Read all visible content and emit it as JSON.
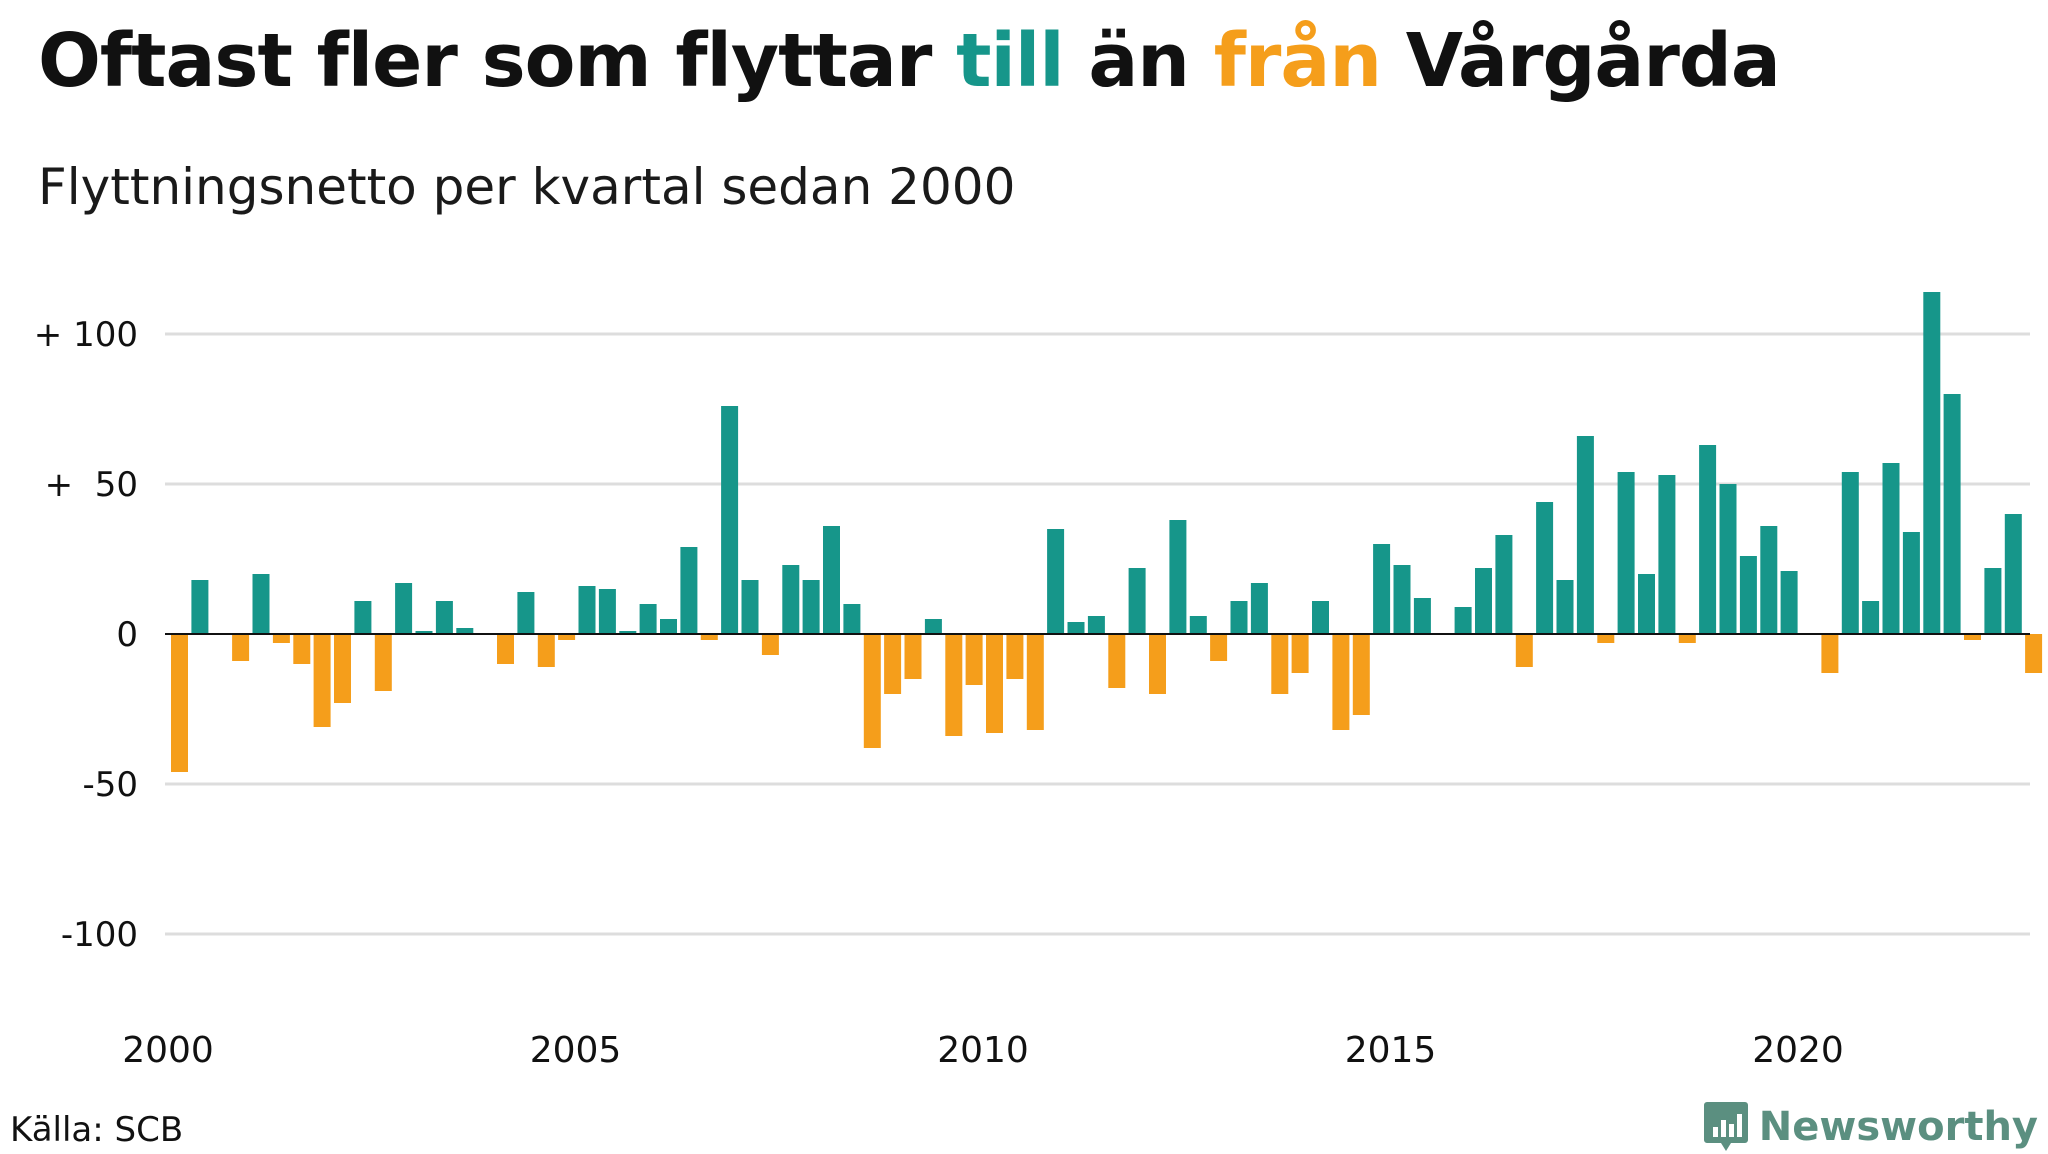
{
  "title": {
    "part1": "Oftast fler som flyttar ",
    "till": "till",
    "part2": " än ",
    "fran": "från",
    "part3": " Vårgårda"
  },
  "subtitle": "Flyttningsnetto per kvartal sedan 2000",
  "source": "Källa: SCB",
  "brand": "Newsworthy",
  "colors": {
    "positive": "#16968a",
    "negative": "#f59e1b",
    "grid": "#dddddd",
    "zero": "#111111",
    "brand": "#5b8f80"
  },
  "chart_data": {
    "type": "bar",
    "y_tick_labels": [
      "+ 100",
      "+  50",
      "0",
      "-50",
      "-100"
    ],
    "y_ticks": [
      100,
      50,
      0,
      -50,
      -100
    ],
    "x_tick_labels": [
      "2000",
      "2005",
      "2010",
      "2015",
      "2020"
    ],
    "x_ticks": [
      2000,
      2005,
      2010,
      2015,
      2020
    ],
    "ylim": [
      -125,
      125
    ],
    "start_year": 2000,
    "values": [
      -46,
      18,
      0,
      -9,
      20,
      -3,
      -10,
      -31,
      -23,
      11,
      -19,
      17,
      1,
      11,
      2,
      0,
      -10,
      14,
      -11,
      -2,
      16,
      15,
      1,
      10,
      5,
      29,
      -2,
      76,
      18,
      -7,
      23,
      18,
      36,
      10,
      -38,
      -20,
      -15,
      5,
      -34,
      -17,
      -33,
      -15,
      -32,
      35,
      4,
      6,
      -18,
      22,
      -20,
      38,
      6,
      -9,
      11,
      17,
      -20,
      -13,
      11,
      -32,
      -27,
      30,
      23,
      12,
      0,
      9,
      22,
      33,
      -11,
      44,
      18,
      66,
      -3,
      54,
      20,
      53,
      -3,
      63,
      50,
      26,
      36,
      21,
      0,
      -13,
      54,
      11,
      57,
      34,
      114,
      80,
      -2,
      22,
      40,
      -13
    ]
  }
}
